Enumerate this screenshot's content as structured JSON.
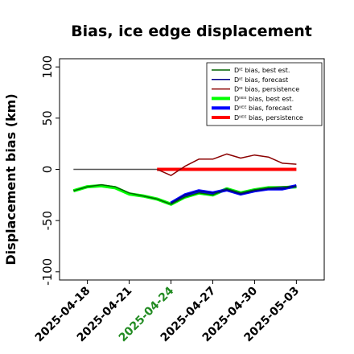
{
  "chart_data": {
    "type": "line",
    "title": "Bias, ice edge displacement",
    "xlabel": "",
    "ylabel": "Displacement bias (km)",
    "ylim": [
      -108,
      108
    ],
    "yticks": [
      -100,
      -50,
      0,
      50,
      100
    ],
    "xticks": [
      {
        "label": "2025-04-18",
        "color": "#000000"
      },
      {
        "label": "2025-04-21",
        "color": "#000000"
      },
      {
        "label": "2025-04-24",
        "color": "#228b22"
      },
      {
        "label": "2025-04-27",
        "color": "#000000"
      },
      {
        "label": "2025-04-30",
        "color": "#000000"
      },
      {
        "label": "2025-05-03",
        "color": "#000000"
      }
    ],
    "xlim": [
      "2025-04-16",
      "2025-05-05"
    ],
    "grid": false,
    "legend_position": "top-right",
    "reference_line": {
      "y": 0,
      "x_start": "2025-04-17",
      "x_end": "2025-04-23",
      "color": "#555555"
    },
    "series": [
      {
        "name": "Dᴵᴱ bias, best est.",
        "color": "#006400",
        "width": 1.5,
        "x": [
          "2025-04-17",
          "2025-04-18",
          "2025-04-19",
          "2025-04-20",
          "2025-04-21",
          "2025-04-22",
          "2025-04-23",
          "2025-04-24",
          "2025-04-25",
          "2025-04-26",
          "2025-04-27",
          "2025-04-28",
          "2025-04-29",
          "2025-04-30",
          "2025-05-01",
          "2025-05-02",
          "2025-05-03"
        ],
        "values": [
          -21,
          -17,
          -15,
          -17,
          -23,
          -26,
          -29,
          -34,
          -27,
          -23,
          -25,
          -19,
          -23,
          -20,
          -18,
          -17,
          -17
        ]
      },
      {
        "name": "Dᴵᴱ bias, forecast",
        "color": "#00008b",
        "width": 1.5,
        "x": [
          "2025-04-24",
          "2025-04-25",
          "2025-04-26",
          "2025-04-27",
          "2025-04-28",
          "2025-04-29",
          "2025-04-30",
          "2025-05-01",
          "2025-05-02",
          "2025-05-03"
        ],
        "values": [
          -33,
          -25,
          -21,
          -23,
          -20,
          -24,
          -21,
          -19,
          -19,
          -16
        ]
      },
      {
        "name": "Dᴵᴱ bias, persistence",
        "color": "#8b0000",
        "width": 1.5,
        "x": [
          "2025-04-23",
          "2025-04-24",
          "2025-04-25",
          "2025-04-26",
          "2025-04-27",
          "2025-04-28",
          "2025-04-29",
          "2025-04-30",
          "2025-05-01",
          "2025-05-02",
          "2025-05-03"
        ],
        "values": [
          0,
          -6,
          3,
          10,
          10,
          15,
          11,
          14,
          12,
          6,
          5
        ]
      },
      {
        "name": "Dᴵᴵᴱᴱ bias, best est.",
        "color": "#00ff00",
        "width": 4,
        "x": [
          "2025-04-17",
          "2025-04-18",
          "2025-04-19",
          "2025-04-20",
          "2025-04-21",
          "2025-04-22",
          "2025-04-23",
          "2025-04-24",
          "2025-04-25",
          "2025-04-26",
          "2025-04-27",
          "2025-04-28",
          "2025-04-29",
          "2025-04-30",
          "2025-05-01",
          "2025-05-02",
          "2025-05-03"
        ],
        "values": [
          -21,
          -17,
          -16,
          -18,
          -24,
          -26,
          -29,
          -34,
          -27,
          -23,
          -25,
          -19,
          -23,
          -20,
          -18,
          -18,
          -17
        ]
      },
      {
        "name": "Dᴵᴵᴱᴱ bias, forecast",
        "color": "#0000ff",
        "width": 4,
        "x": [
          "2025-04-24",
          "2025-04-25",
          "2025-04-26",
          "2025-04-27",
          "2025-04-28",
          "2025-04-29",
          "2025-04-30",
          "2025-05-01",
          "2025-05-02",
          "2025-05-03"
        ],
        "values": [
          -33,
          -25,
          -21,
          -23,
          -20,
          -24,
          -21,
          -19,
          -19,
          -16
        ]
      },
      {
        "name": "Dᴵᴵᴱᴱ bias, persistence",
        "color": "#ff0000",
        "width": 4,
        "x": [
          "2025-04-23",
          "2025-04-24",
          "2025-04-25",
          "2025-04-26",
          "2025-04-27",
          "2025-04-28",
          "2025-04-29",
          "2025-04-30",
          "2025-05-01",
          "2025-05-02",
          "2025-05-03"
        ],
        "values": [
          0,
          0,
          0,
          0,
          0,
          0,
          0,
          0,
          0,
          0,
          0
        ]
      }
    ]
  }
}
